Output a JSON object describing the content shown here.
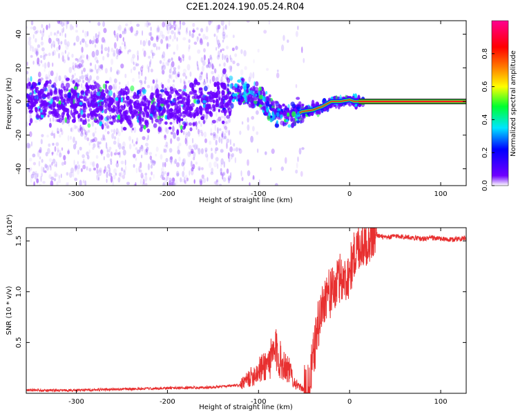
{
  "figure_title": "C2E1.2024.190.05.24.R04",
  "chart_data": [
    {
      "type": "heatmap",
      "title": "",
      "xlabel": "Height of straight line (km)",
      "ylabel": "Frequency (Hz)",
      "xlim": [
        -355,
        128
      ],
      "ylim": [
        -50,
        48
      ],
      "x_ticks": [
        -300,
        -200,
        -100,
        0,
        100
      ],
      "y_ticks": [
        -40,
        -20,
        0,
        20,
        40
      ],
      "colorbar": {
        "label": "Normalized spectral amplitude",
        "range": [
          0,
          1
        ],
        "ticks": [
          "0.0",
          "0.2",
          "0.4",
          "0.6",
          "0.8"
        ],
        "colormap": [
          "#ffffff",
          "#7000ff",
          "#0000ff",
          "#00e5ff",
          "#00ff30",
          "#ffff00",
          "#ff7a00",
          "#ff0000",
          "#ff0090"
        ]
      },
      "ridge_center": {
        "x": [
          -355,
          -300,
          -250,
          -210,
          -180,
          -150,
          -130,
          -115,
          -100,
          -90,
          -80,
          -70,
          -60,
          -52,
          -40,
          -30,
          -20,
          -10,
          0,
          5,
          10,
          20,
          128
        ],
        "y": [
          0,
          0,
          -3,
          -3,
          -2,
          0,
          5,
          5,
          2,
          -3,
          -7,
          -8,
          -8,
          -6,
          -5,
          -3,
          0,
          0,
          1,
          0,
          0,
          0,
          0
        ]
      }
    },
    {
      "type": "line",
      "title": "",
      "xlabel": "Height of straight line (km)",
      "ylabel": "SNR (10 * v/v)",
      "y_scale_label": "(x10⁴)",
      "xlim": [
        -355,
        128
      ],
      "ylim": [
        0,
        16300
      ],
      "x_ticks": [
        -300,
        -200,
        -100,
        0,
        100
      ],
      "y_tick_values": [
        5000,
        10000,
        15000
      ],
      "y_tick_labels": [
        "0.5",
        "1.0",
        "1.5"
      ],
      "line_color": "#e83030",
      "series": [
        {
          "x": [
            -355,
            -300,
            -250,
            -200,
            -150,
            -120,
            -110,
            -100,
            -90,
            -85,
            -80,
            -75,
            -70,
            -65,
            -60,
            -55,
            -50,
            -45,
            -40,
            -35,
            -30,
            -25,
            -20,
            -15,
            -10,
            -5,
            0,
            5,
            10,
            15,
            20,
            25,
            30,
            35,
            40,
            45,
            50,
            60,
            70,
            80,
            90,
            100,
            110,
            128
          ],
          "y": [
            300,
            300,
            400,
            500,
            600,
            800,
            1500,
            2200,
            3000,
            3500,
            4200,
            3000,
            2800,
            2000,
            1000,
            600,
            400,
            300,
            3500,
            6500,
            8500,
            10000,
            9800,
            10500,
            11500,
            11000,
            12000,
            13500,
            14500,
            14800,
            15000,
            15500,
            15600,
            15400,
            15300,
            15400,
            15500,
            15400,
            15300,
            15200,
            15300,
            15200,
            15100,
            15300
          ]
        }
      ]
    }
  ]
}
